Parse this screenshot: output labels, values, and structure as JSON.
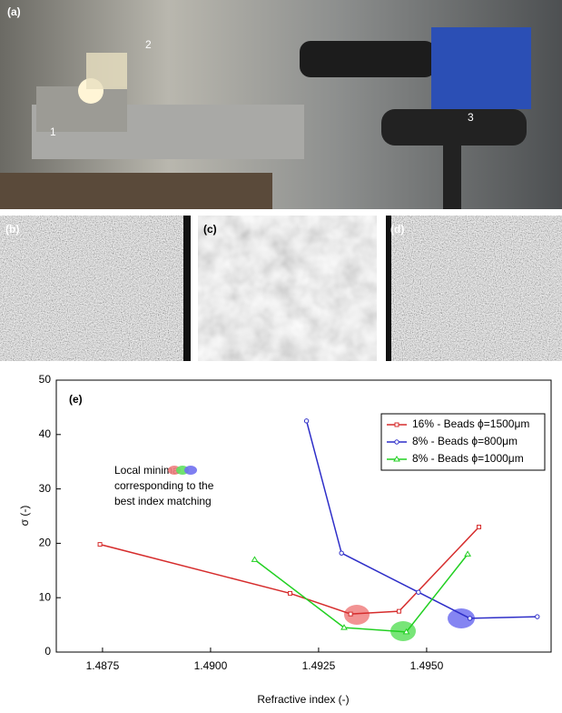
{
  "photos": {
    "a": {
      "label": "(a)",
      "items": [
        "1",
        "2",
        "3"
      ]
    },
    "b": {
      "label": "(b)"
    },
    "c": {
      "label": "(c)"
    },
    "d": {
      "label": "(d)"
    }
  },
  "chart_data": {
    "type": "line",
    "panel_label": "(e)",
    "x_label": "Refractive index (-)",
    "y_label": "σ (-)",
    "annotation": [
      "Local minima",
      "corresponding to the",
      "best index matching"
    ],
    "xlim": [
      1.48643,
      1.49788
    ],
    "xticks": [
      {
        "value": 1.4875,
        "label": "1.4875"
      },
      {
        "value": 1.49,
        "label": "1.4900"
      },
      {
        "value": 1.4925,
        "label": "1.4925"
      },
      {
        "value": 1.495,
        "label": "1.4950"
      }
    ],
    "ylim": [
      0,
      50
    ],
    "yticks": [
      0,
      10,
      20,
      30,
      40,
      50
    ],
    "legend": "upper right",
    "series": [
      {
        "name": "16% - Beads ϕ=1500μm",
        "color": "#d62d2d",
        "marker": "square",
        "x": [
          1.48744,
          1.49184,
          1.49324,
          1.49436,
          1.49621
        ],
        "values": [
          19.8,
          10.8,
          7,
          7.5,
          23
        ]
      },
      {
        "name": "8% - Beads ϕ=800μm",
        "color": "#2e2ec8",
        "marker": "circle",
        "x": [
          1.49222,
          1.49303,
          1.49481,
          1.496,
          1.49756
        ],
        "values": [
          42.5,
          18.2,
          11,
          6.2,
          6.5
        ]
      },
      {
        "name": "8% - Beads ϕ=1000μm",
        "color": "#22d022",
        "marker": "triangle",
        "x": [
          1.49102,
          1.49309,
          1.49453,
          1.49595
        ],
        "values": [
          17,
          4.5,
          3.7,
          18
        ]
      }
    ]
  }
}
